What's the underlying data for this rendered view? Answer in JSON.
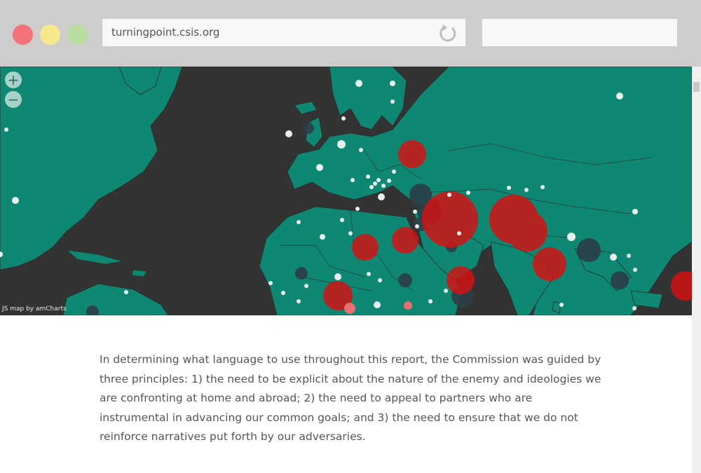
{
  "browser": {
    "url": "turningpoint.csis.org",
    "reload_icon": "reload-icon",
    "search_value": ""
  },
  "map": {
    "zoom_in_label": "+",
    "zoom_out_label": "−",
    "credit": "JS map by amCharts",
    "colors": {
      "land": "#0e8872",
      "ocean": "#333333",
      "high": "#d11313",
      "mid": "#2c3e48",
      "low": "#e8f0ee",
      "light_red": "#e87070"
    }
  },
  "content": {
    "paragraph": "In determining what language to use throughout this report, the Commission was guided by three principles: 1) the need to be explicit about the nature of the enemy and ideologies we are confronting at home and abroad; 2) the need to appeal to partners who are instrumental in advancing our common goals; and 3) the need to ensure that we do not reinforce narratives put forth by our adversaries."
  }
}
